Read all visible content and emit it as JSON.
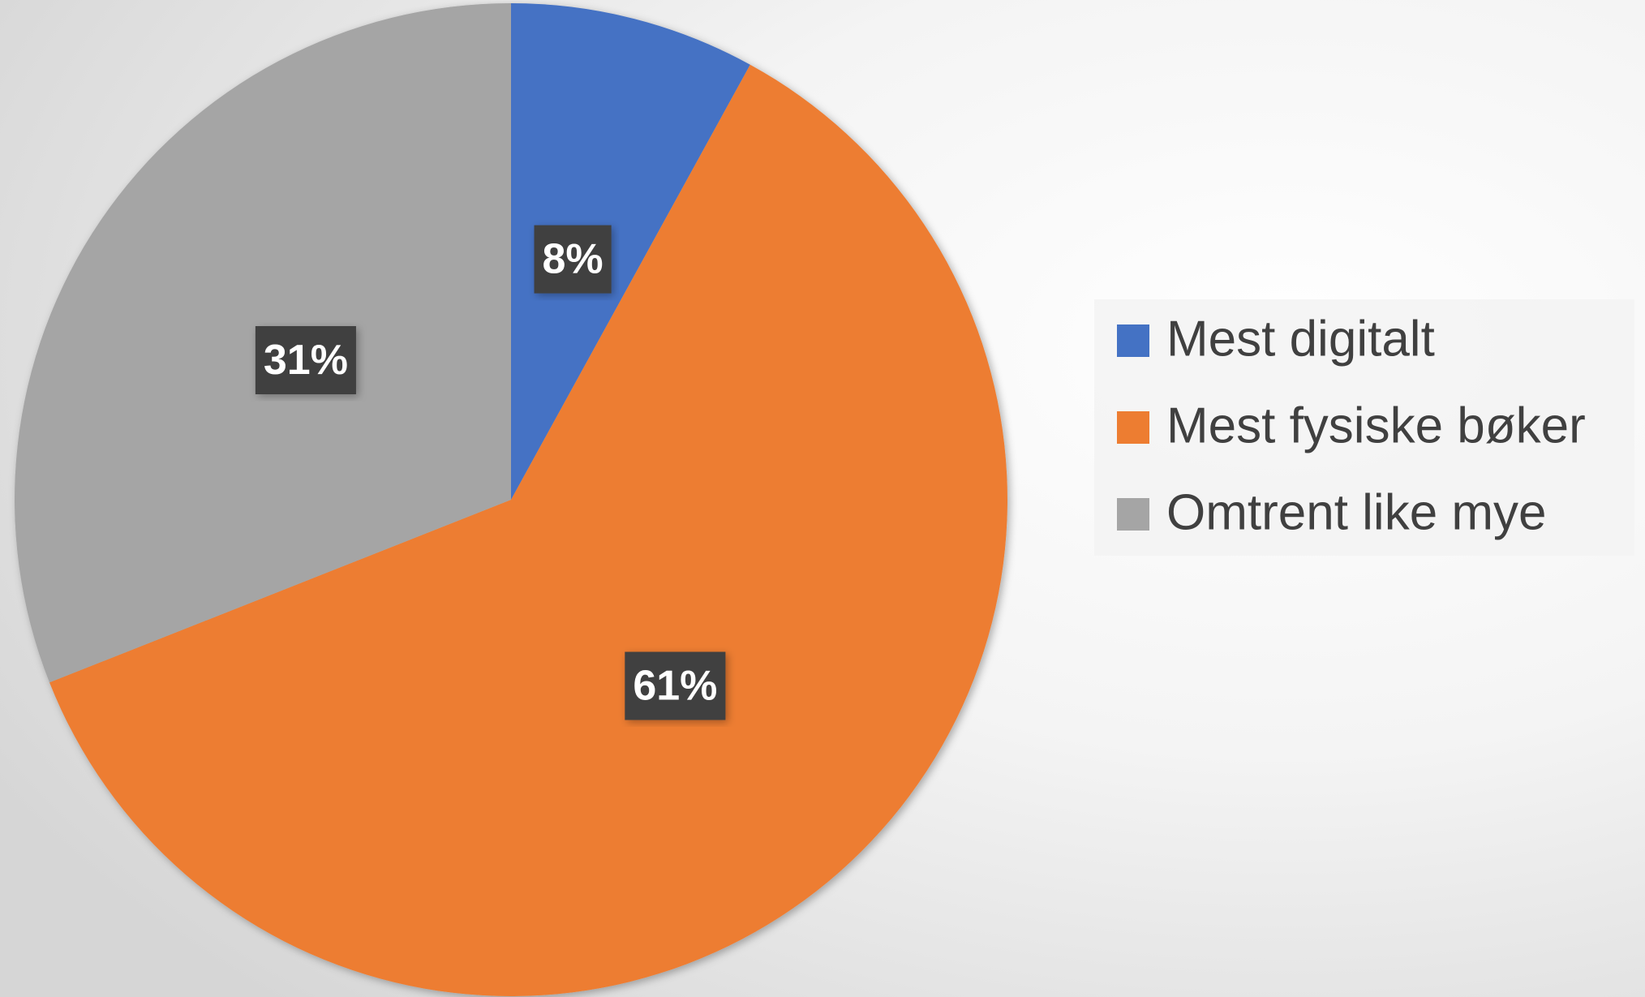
{
  "chart_data": {
    "type": "pie",
    "categories": [
      "Mest digitalt",
      "Mest fysiske bøker",
      "Omtrent like mye"
    ],
    "values": [
      8,
      61,
      31
    ],
    "value_labels": [
      "8%",
      "61%",
      "31%"
    ],
    "colors": [
      "#4472c4",
      "#ed7d31",
      "#a5a5a5"
    ],
    "legend": "right"
  }
}
